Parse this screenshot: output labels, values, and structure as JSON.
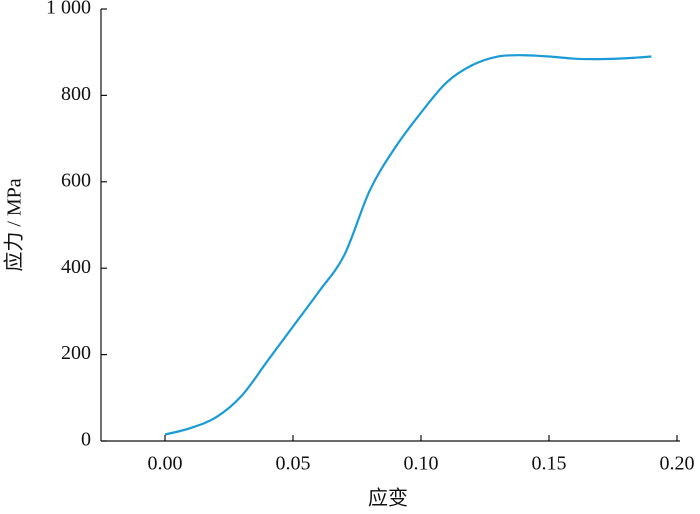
{
  "chart_data": {
    "type": "line",
    "x_label": "应变",
    "y_label": "应力 / MPa",
    "x": [
      0.0,
      0.01,
      0.02,
      0.03,
      0.04,
      0.05,
      0.06,
      0.07,
      0.08,
      0.09,
      0.1,
      0.11,
      0.12,
      0.13,
      0.14,
      0.15,
      0.16,
      0.17,
      0.18,
      0.19
    ],
    "series": [
      {
        "color": "#1a9bd7",
        "values": [
          15,
          30,
          55,
          105,
          185,
          265,
          345,
          430,
          580,
          680,
          760,
          830,
          870,
          890,
          893,
          890,
          885,
          884,
          886,
          890
        ]
      }
    ],
    "xlim": [
      -0.025,
      0.2
    ],
    "xticks": [
      {
        "value": 0,
        "label": "0.00"
      },
      0.05,
      {
        "value": 0.1,
        "label": "0.10"
      },
      0.15,
      {
        "value": 0.2,
        "label": "0.20"
      }
    ],
    "ylim": [
      0,
      1000
    ],
    "yticks": [
      0,
      200,
      400,
      600,
      800,
      {
        "value": 1000,
        "label": "1 000"
      }
    ]
  }
}
